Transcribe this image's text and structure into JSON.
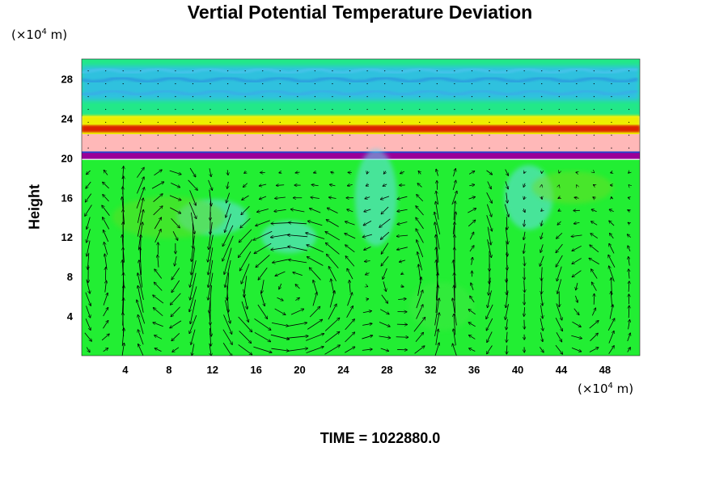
{
  "chart_data": {
    "type": "heatmap",
    "title": "Vertial Potential Temperature Deviation",
    "ylabel": "Height",
    "y_unit": {
      "prefix": "(×10",
      "exp": "4",
      "suffix": " m)"
    },
    "x_unit": {
      "prefix": "(×10",
      "exp": "4",
      "suffix": " m)"
    },
    "time_label": "TIME = 1022880.0",
    "xlim": [
      0,
      51.2
    ],
    "ylim": [
      0,
      30
    ],
    "x_ticks": [
      4,
      8,
      12,
      16,
      20,
      24,
      28,
      32,
      36,
      40,
      44,
      48
    ],
    "y_ticks": [
      4,
      8,
      12,
      16,
      20,
      24,
      28
    ],
    "colors": {
      "background_field": "#22ee33",
      "upper_field": "#22e888",
      "sky_band": "#33bbee",
      "inversion_red": "#dd2200",
      "inversion_yellow": "#eeee00",
      "pink_layer": "#ffb8b8",
      "purple_layer": "#990099",
      "cyan_low": "#66ddee",
      "arrows": "#000000"
    },
    "layers": [
      {
        "name": "upper stable layer",
        "y_min": 24.2,
        "y_max": 30
      },
      {
        "name": "red-yellow inversion",
        "y_min": 22.3,
        "y_max": 24.2
      },
      {
        "name": "pink layer",
        "y_min": 20.6,
        "y_max": 22.3
      },
      {
        "name": "purple layer",
        "y_min": 19.8,
        "y_max": 20.6
      },
      {
        "name": "convective layer",
        "y_min": 0,
        "y_max": 19.8
      }
    ],
    "vortices": [
      {
        "cx": 19,
        "cy": 6.5,
        "rx": 6.5,
        "ry": 6.5,
        "sense": "ccw"
      },
      {
        "cx": 8,
        "cy": 10,
        "rx": 4,
        "ry": 8,
        "sense": "cw"
      },
      {
        "cx": 30,
        "cy": 8,
        "rx": 3.2,
        "ry": 7,
        "sense": "ccw"
      },
      {
        "cx": 36,
        "cy": 9,
        "rx": 2.6,
        "ry": 8,
        "sense": "cw"
      },
      {
        "cx": 46,
        "cy": 6,
        "rx": 3.4,
        "ry": 6,
        "sense": "ccw"
      },
      {
        "cx": 2,
        "cy": 9,
        "rx": 2.6,
        "ry": 8,
        "sense": "ccw"
      }
    ]
  }
}
